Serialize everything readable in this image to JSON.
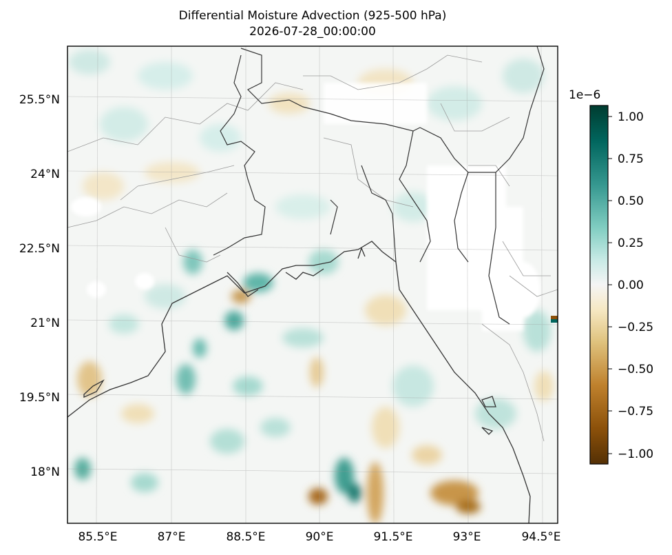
{
  "title": {
    "line1": "Differential Moisture Advection (925-500 hPa)",
    "line2": "2026-07-28_00:00:00"
  },
  "map": {
    "x_ticks": [
      "85.5°E",
      "87°E",
      "88.5°E",
      "90°E",
      "91.5°E",
      "93°E",
      "94.5°E"
    ],
    "y_ticks": [
      "25.5°N",
      "24°N",
      "22.5°N",
      "21°N",
      "19.5°N",
      "18°N"
    ],
    "region": "Bay of Bengal / Bangladesh",
    "colormap": "BrBG (brown-white-teal)",
    "grid": true
  },
  "colorbar": {
    "exponent_label": "1e−6",
    "ticks": [
      "1.00",
      "0.75",
      "0.50",
      "0.25",
      "0.00",
      "−0.25",
      "−0.50",
      "−0.75",
      "−1.00"
    ],
    "colors": {
      "max": "#003c30",
      "high": "#01665e",
      "mid_high": "#35978f",
      "low_pos": "#80cdc1",
      "near_zero_pos": "#c7eae5",
      "zero": "#f5f5f5",
      "near_zero_neg": "#f6e8c3",
      "low_neg": "#dfc27d",
      "mid_neg": "#bf812d",
      "deep_neg": "#8c510a",
      "min": "#543005"
    }
  }
}
